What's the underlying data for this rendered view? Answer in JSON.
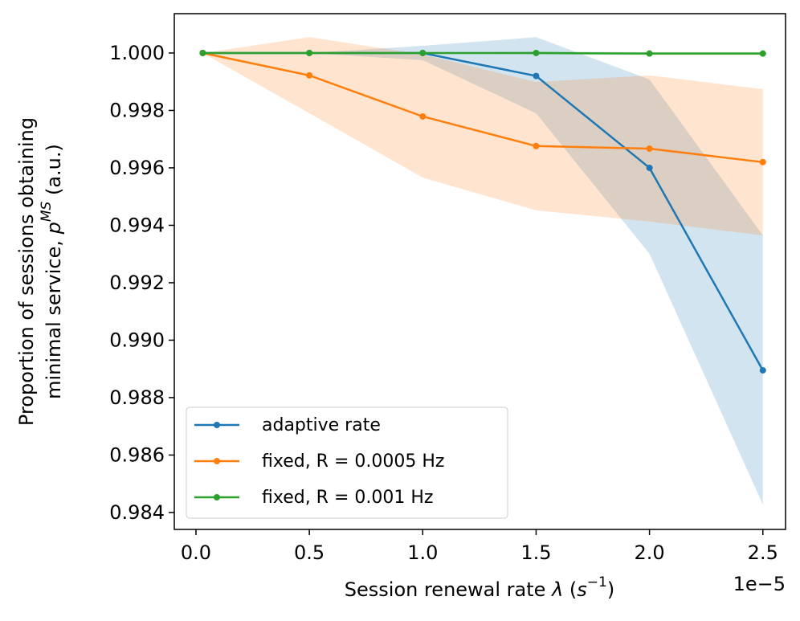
{
  "chart_data": {
    "type": "line",
    "x_label": [
      "Session renewal rate ",
      "λ",
      " (",
      "s",
      "−1",
      ")"
    ],
    "x_offset_label": "1e−5",
    "y_label": [
      [
        "Proportion of sessions obtaining"
      ],
      [
        "minimal service, ",
        "p",
        "MS",
        " (a.u.)"
      ]
    ],
    "x": [
      0.03,
      0.5,
      1.0,
      1.5,
      2.0,
      2.5
    ],
    "series": [
      {
        "name": "adaptive rate",
        "color": "#1f77b4",
        "values": [
          1.0,
          1.0,
          1.0,
          0.9992,
          0.996,
          0.98895
        ],
        "lower": [
          1.0,
          1.0,
          0.99975,
          0.9979,
          0.99301,
          0.98428
        ],
        "upper": [
          1.0,
          1.0,
          1.00025,
          1.00055,
          0.99908,
          0.99365
        ]
      },
      {
        "name": "fixed, R = 0.0005 Hz",
        "color": "#ff7f0e",
        "values": [
          1.0,
          0.99922,
          0.99779,
          0.99676,
          0.99667,
          0.9962
        ],
        "lower": [
          1.0,
          0.9979,
          0.99566,
          0.99452,
          0.99413,
          0.99365
        ],
        "upper": [
          1.0,
          1.00055,
          0.99995,
          0.99899,
          0.99922,
          0.99874
        ]
      },
      {
        "name": "fixed, R = 0.001 Hz",
        "color": "#2ca02c",
        "values": [
          1.0,
          1.0,
          1.0,
          1.0,
          0.99998,
          0.99998
        ],
        "lower": [
          1.0,
          1.0,
          1.0,
          0.99995,
          0.99993,
          0.99993
        ],
        "upper": [
          1.0,
          1.0,
          1.0,
          1.00005,
          1.00003,
          1.00003
        ]
      }
    ],
    "xlim": [
      -0.0955,
      2.6
    ],
    "ylim": [
      0.98341,
      1.00137
    ],
    "xticks": [
      {
        "value": 0,
        "label": "0.0"
      },
      0.5,
      {
        "value": 1,
        "label": "1.0"
      },
      1.5,
      {
        "value": 2,
        "label": "2.0"
      },
      2.5
    ],
    "yticks": [
      {
        "value": 0.984,
        "label": "0.984"
      },
      {
        "value": 0.986,
        "label": "0.986"
      },
      {
        "value": 0.988,
        "label": "0.988"
      },
      {
        "value": 0.99,
        "label": "0.990"
      },
      {
        "value": 0.992,
        "label": "0.992"
      },
      {
        "value": 0.994,
        "label": "0.994"
      },
      {
        "value": 0.996,
        "label": "0.996"
      },
      {
        "value": 0.998,
        "label": "0.998"
      },
      {
        "value": 1,
        "label": "1.000"
      }
    ],
    "grid": false,
    "legend": "lower left",
    "band_opacity": 0.2
  }
}
